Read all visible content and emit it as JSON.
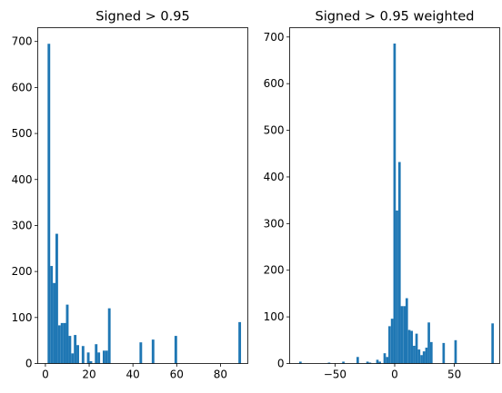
{
  "chart_data": [
    {
      "type": "bar",
      "title": "Signed > 0.95",
      "xlabel": "",
      "ylabel": "",
      "xlim": [
        -3.5,
        92.5
      ],
      "ylim": [
        0,
        730
      ],
      "xticks": [
        0,
        20,
        40,
        60,
        80
      ],
      "yticks": [
        0,
        100,
        200,
        300,
        400,
        500,
        600,
        700
      ],
      "bin_width": 1.2,
      "color": "#1f77b4",
      "bars": [
        {
          "x": 1.0,
          "y": 695
        },
        {
          "x": 2.2,
          "y": 212
        },
        {
          "x": 3.4,
          "y": 175
        },
        {
          "x": 4.6,
          "y": 282
        },
        {
          "x": 5.8,
          "y": 83
        },
        {
          "x": 7.0,
          "y": 88
        },
        {
          "x": 8.2,
          "y": 88
        },
        {
          "x": 9.4,
          "y": 128
        },
        {
          "x": 10.6,
          "y": 60
        },
        {
          "x": 11.8,
          "y": 22
        },
        {
          "x": 13.0,
          "y": 62
        },
        {
          "x": 14.2,
          "y": 40
        },
        {
          "x": 16.6,
          "y": 38
        },
        {
          "x": 19.0,
          "y": 24
        },
        {
          "x": 20.2,
          "y": 5
        },
        {
          "x": 22.6,
          "y": 42
        },
        {
          "x": 23.8,
          "y": 24
        },
        {
          "x": 26.2,
          "y": 28
        },
        {
          "x": 27.4,
          "y": 28
        },
        {
          "x": 28.6,
          "y": 120
        },
        {
          "x": 43.0,
          "y": 46
        },
        {
          "x": 48.6,
          "y": 52
        },
        {
          "x": 59.0,
          "y": 60
        },
        {
          "x": 88.2,
          "y": 90
        }
      ]
    },
    {
      "type": "bar",
      "title": "Signed > 0.95 weighted",
      "xlabel": "",
      "ylabel": "",
      "xlim": [
        -88,
        88
      ],
      "ylim": [
        0,
        720
      ],
      "xticks": [
        -50,
        0,
        50
      ],
      "yticks": [
        0,
        100,
        200,
        300,
        400,
        500,
        600,
        700
      ],
      "bin_width": 2.05,
      "color": "#1f77b4",
      "bars": [
        {
          "x": -80.0,
          "y": 4
        },
        {
          "x": -56.0,
          "y": 2
        },
        {
          "x": -44.0,
          "y": 4
        },
        {
          "x": -32.0,
          "y": 14
        },
        {
          "x": -23.8,
          "y": 4
        },
        {
          "x": -21.7,
          "y": 2
        },
        {
          "x": -15.5,
          "y": 8
        },
        {
          "x": -13.5,
          "y": 4
        },
        {
          "x": -9.4,
          "y": 22
        },
        {
          "x": -7.3,
          "y": 14
        },
        {
          "x": -5.3,
          "y": 80
        },
        {
          "x": -3.2,
          "y": 96
        },
        {
          "x": -1.1,
          "y": 686
        },
        {
          "x": 0.9,
          "y": 328
        },
        {
          "x": 3.0,
          "y": 432
        },
        {
          "x": 5.0,
          "y": 123
        },
        {
          "x": 7.1,
          "y": 123
        },
        {
          "x": 9.1,
          "y": 140
        },
        {
          "x": 11.2,
          "y": 72
        },
        {
          "x": 13.2,
          "y": 70
        },
        {
          "x": 15.3,
          "y": 38
        },
        {
          "x": 17.3,
          "y": 64
        },
        {
          "x": 19.4,
          "y": 30
        },
        {
          "x": 21.5,
          "y": 18
        },
        {
          "x": 23.5,
          "y": 26
        },
        {
          "x": 25.6,
          "y": 34
        },
        {
          "x": 27.6,
          "y": 88
        },
        {
          "x": 29.7,
          "y": 46
        },
        {
          "x": 40.0,
          "y": 44
        },
        {
          "x": 50.0,
          "y": 50
        },
        {
          "x": 81.0,
          "y": 86
        }
      ]
    }
  ]
}
